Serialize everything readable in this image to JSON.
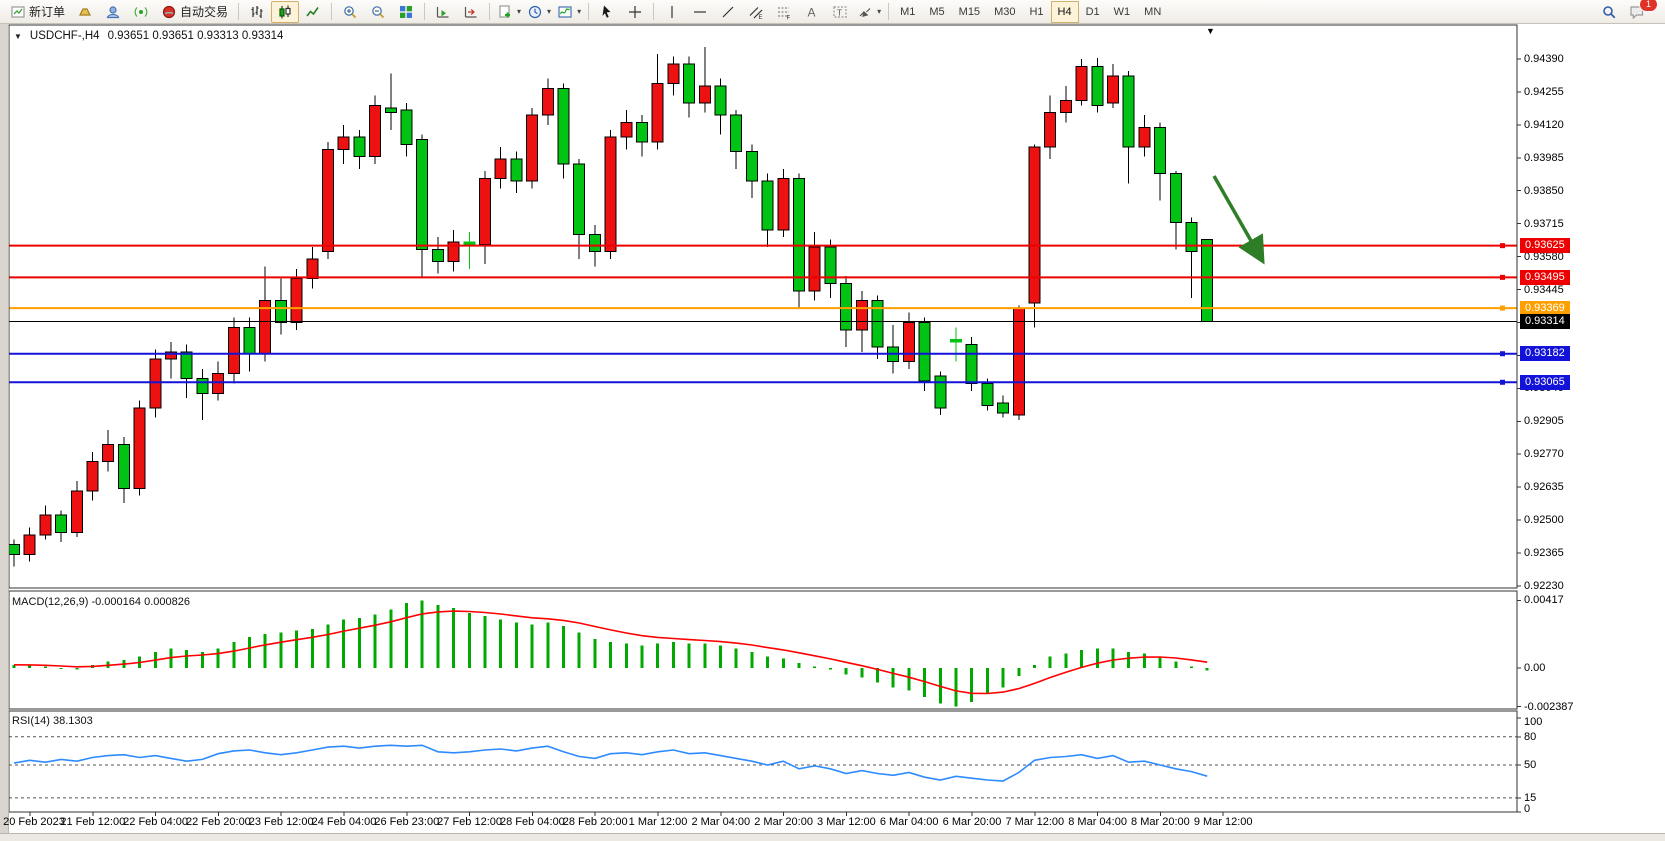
{
  "toolbar": {
    "new_order_label": "新订单",
    "autotrade_label": "自动交易",
    "timeframes": [
      "M1",
      "M5",
      "M15",
      "M30",
      "H1",
      "H4",
      "D1",
      "W1",
      "MN"
    ],
    "active_timeframe": "H4",
    "notification_count": "1",
    "items": [
      {
        "icon": "new-order-icon",
        "label": "新订单"
      },
      {
        "icon": "gold-icon"
      },
      {
        "icon": "profile-icon"
      },
      {
        "icon": "signal-icon"
      },
      {
        "icon": "autotrading-icon",
        "label": "自动交易"
      },
      {
        "sep": true
      },
      {
        "icon": "bar-chart-icon"
      },
      {
        "icon": "candlestick-icon",
        "active": true
      },
      {
        "icon": "line-chart-icon"
      },
      {
        "sep": true
      },
      {
        "icon": "zoom-in-icon"
      },
      {
        "icon": "zoom-out-icon"
      },
      {
        "icon": "tile-windows-icon"
      },
      {
        "sep": true
      },
      {
        "icon": "auto-scroll-icon"
      },
      {
        "icon": "chart-shift-icon"
      },
      {
        "sep": true
      },
      {
        "icon": "new-template-icon",
        "dropdown": true
      },
      {
        "icon": "period-icon",
        "dropdown": true
      },
      {
        "icon": "indicators-icon",
        "dropdown": true
      },
      {
        "sep": true
      },
      {
        "icon": "cursor-icon"
      },
      {
        "icon": "crosshair-icon"
      },
      {
        "sep": true
      },
      {
        "icon": "vertical-line-icon"
      },
      {
        "icon": "horizontal-line-icon"
      },
      {
        "icon": "trendline-icon"
      },
      {
        "icon": "channel-icon"
      },
      {
        "icon": "fibonacci-icon"
      },
      {
        "icon": "text-icon"
      },
      {
        "icon": "text-label-icon"
      },
      {
        "icon": "shapes-icon",
        "dropdown": true
      },
      {
        "sep": true
      },
      {
        "timeframes": true
      }
    ]
  },
  "header": {
    "symbol_title": "USDCHF-,H4",
    "ohlc": "0.93651 0.93651 0.93313 0.93314"
  },
  "macd_panel": {
    "label": "MACD(12,26,9) -0.000164 0.000826",
    "axis_labels": [
      "0.00417",
      "0.00",
      "-0.002387"
    ],
    "axis_values": [
      0.00417,
      0.0,
      -0.002387
    ]
  },
  "rsi_panel": {
    "label": "RSI(14) 38.1303",
    "axis_labels": [
      "100",
      "80",
      "50",
      "15",
      "0"
    ],
    "axis_values": [
      100,
      80,
      50,
      15,
      0
    ],
    "dashed_levels": [
      80,
      50,
      15
    ]
  },
  "chart_data": {
    "type": "candlestick",
    "symbol": "USDCHF-",
    "timeframe": "H4",
    "bull_color": "#ee1111",
    "bear_color": "#00c314",
    "wick_color": "#000000",
    "grid": false,
    "price_axis_ticks": [
      "0.94390",
      "0.94255",
      "0.94120",
      "0.93985",
      "0.93850",
      "0.93715",
      "0.93580",
      "0.93445",
      "0.93310",
      "0.93175",
      "0.93040",
      "0.92905",
      "0.92770",
      "0.92635",
      "0.92500",
      "0.92365",
      "0.92230"
    ],
    "price_range": [
      0.9223,
      0.9439
    ],
    "time_labels": [
      "20 Feb 2023",
      "21 Feb 12:00",
      "22 Feb 04:00",
      "22 Feb 20:00",
      "23 Feb 12:00",
      "24 Feb 04:00",
      "26 Feb 23:00",
      "27 Feb 12:00",
      "28 Feb 04:00",
      "28 Feb 20:00",
      "1 Mar 12:00",
      "2 Mar 04:00",
      "2 Mar 20:00",
      "3 Mar 12:00",
      "6 Mar 04:00",
      "6 Mar 20:00",
      "7 Mar 12:00",
      "8 Mar 04:00",
      "8 Mar 20:00",
      "9 Mar 12:00"
    ],
    "price_lines": [
      {
        "label": "0.93625",
        "price": 0.93625,
        "color": "#ec0000",
        "width": 2,
        "kind": "horizontal-line"
      },
      {
        "label": "0.93495",
        "price": 0.93495,
        "color": "#ec0000",
        "width": 2,
        "kind": "horizontal-line"
      },
      {
        "label": "0.93369",
        "price": 0.93369,
        "color": "#ffa000",
        "width": 2,
        "kind": "horizontal-line"
      },
      {
        "label": "0.93314",
        "price": 0.93314,
        "color": "#000000",
        "width": 1,
        "kind": "current-price-line"
      },
      {
        "label": "0.93182",
        "price": 0.93182,
        "color": "#1212d8",
        "width": 2,
        "kind": "horizontal-line"
      },
      {
        "label": "0.93065",
        "price": 0.93065,
        "color": "#1212d8",
        "width": 2,
        "kind": "horizontal-line"
      }
    ],
    "candles_ohlc": [
      [
        0.924,
        0.9242,
        0.9231,
        0.9236
      ],
      [
        0.9236,
        0.9247,
        0.9233,
        0.9244
      ],
      [
        0.9244,
        0.9256,
        0.9242,
        0.9252
      ],
      [
        0.9252,
        0.9254,
        0.9241,
        0.9245
      ],
      [
        0.9245,
        0.9266,
        0.9243,
        0.9262
      ],
      [
        0.9262,
        0.9278,
        0.9258,
        0.9274
      ],
      [
        0.9274,
        0.9287,
        0.927,
        0.9281
      ],
      [
        0.9281,
        0.9284,
        0.9257,
        0.9263
      ],
      [
        0.9263,
        0.9299,
        0.926,
        0.9296
      ],
      [
        0.9296,
        0.932,
        0.9292,
        0.9316
      ],
      [
        0.9316,
        0.9323,
        0.9308,
        0.9319
      ],
      [
        0.9319,
        0.9322,
        0.93,
        0.9308
      ],
      [
        0.9308,
        0.9312,
        0.9291,
        0.9302
      ],
      [
        0.9302,
        0.9315,
        0.9299,
        0.931
      ],
      [
        0.931,
        0.9333,
        0.9306,
        0.9329
      ],
      [
        0.9329,
        0.9333,
        0.9311,
        0.9318
      ],
      [
        0.9318,
        0.9354,
        0.9315,
        0.934
      ],
      [
        0.934,
        0.9349,
        0.9326,
        0.9331
      ],
      [
        0.9331,
        0.9353,
        0.9328,
        0.9349
      ],
      [
        0.9349,
        0.9362,
        0.9345,
        0.9357
      ],
      [
        0.936,
        0.9405,
        0.9357,
        0.9402
      ],
      [
        0.9402,
        0.9412,
        0.9396,
        0.9407
      ],
      [
        0.9407,
        0.941,
        0.9394,
        0.9399
      ],
      [
        0.9399,
        0.9424,
        0.9396,
        0.942
      ],
      [
        0.9419,
        0.9433,
        0.941,
        0.9417
      ],
      [
        0.9418,
        0.9421,
        0.9399,
        0.9404
      ],
      [
        0.9406,
        0.9408,
        0.9349,
        0.9361
      ],
      [
        0.9361,
        0.9366,
        0.9351,
        0.9356
      ],
      [
        0.9356,
        0.9369,
        0.9352,
        0.9364
      ],
      [
        0.9364,
        0.9368,
        0.9353,
        0.9363
      ],
      [
        0.9363,
        0.9393,
        0.9355,
        0.939
      ],
      [
        0.939,
        0.9403,
        0.9386,
        0.9398
      ],
      [
        0.9398,
        0.9401,
        0.9384,
        0.9389
      ],
      [
        0.9389,
        0.9419,
        0.9386,
        0.9416
      ],
      [
        0.9416,
        0.9431,
        0.9412,
        0.9427
      ],
      [
        0.9427,
        0.9429,
        0.939,
        0.9396
      ],
      [
        0.9396,
        0.9398,
        0.9357,
        0.9367
      ],
      [
        0.9367,
        0.9371,
        0.9354,
        0.936
      ],
      [
        0.936,
        0.941,
        0.9357,
        0.9407
      ],
      [
        0.9407,
        0.9418,
        0.9402,
        0.9413
      ],
      [
        0.9413,
        0.9416,
        0.9399,
        0.9405
      ],
      [
        0.9405,
        0.9441,
        0.9402,
        0.9429
      ],
      [
        0.9429,
        0.944,
        0.9424,
        0.9437
      ],
      [
        0.9437,
        0.944,
        0.9415,
        0.9421
      ],
      [
        0.9421,
        0.9444,
        0.9417,
        0.9428
      ],
      [
        0.9428,
        0.9431,
        0.9408,
        0.9416
      ],
      [
        0.9416,
        0.9418,
        0.9394,
        0.9401
      ],
      [
        0.9401,
        0.9404,
        0.9382,
        0.9389
      ],
      [
        0.9389,
        0.9392,
        0.9362,
        0.9369
      ],
      [
        0.9369,
        0.9394,
        0.9366,
        0.939
      ],
      [
        0.939,
        0.9392,
        0.9337,
        0.9344
      ],
      [
        0.9344,
        0.9368,
        0.934,
        0.9362
      ],
      [
        0.9362,
        0.9365,
        0.9341,
        0.9347
      ],
      [
        0.9347,
        0.935,
        0.9321,
        0.9328
      ],
      [
        0.9328,
        0.9344,
        0.9319,
        0.934
      ],
      [
        0.934,
        0.9342,
        0.9316,
        0.9321
      ],
      [
        0.9321,
        0.933,
        0.931,
        0.9315
      ],
      [
        0.9315,
        0.9335,
        0.9312,
        0.9331
      ],
      [
        0.9331,
        0.9333,
        0.9303,
        0.9307
      ],
      [
        0.9309,
        0.9311,
        0.9293,
        0.9296
      ],
      [
        0.9324,
        0.9329,
        0.9315,
        0.9323
      ],
      [
        0.9322,
        0.9325,
        0.9303,
        0.9306
      ],
      [
        0.9306,
        0.9308,
        0.9295,
        0.9297
      ],
      [
        0.9298,
        0.9301,
        0.9292,
        0.9294
      ],
      [
        0.9293,
        0.9338,
        0.9291,
        0.9337
      ],
      [
        0.9339,
        0.9404,
        0.9329,
        0.9403
      ],
      [
        0.9403,
        0.9424,
        0.9398,
        0.9417
      ],
      [
        0.9417,
        0.9428,
        0.9413,
        0.9422
      ],
      [
        0.9422,
        0.9439,
        0.942,
        0.9436
      ],
      [
        0.9436,
        0.94394,
        0.9417,
        0.942
      ],
      [
        0.9421,
        0.9437,
        0.9419,
        0.9432
      ],
      [
        0.9432,
        0.9434,
        0.9388,
        0.9403
      ],
      [
        0.9403,
        0.9416,
        0.9399,
        0.9411
      ],
      [
        0.9411,
        0.9413,
        0.9381,
        0.9392
      ],
      [
        0.9392,
        0.9393,
        0.9361,
        0.9372
      ],
      [
        0.9372,
        0.9374,
        0.9341,
        0.936
      ],
      [
        0.93651,
        0.93651,
        0.93313,
        0.93314
      ]
    ],
    "macd_histogram": [
      0.0002,
      0.00015,
      0.0001,
      -5e-05,
      -0.0001,
      0.0002,
      0.0004,
      0.0005,
      0.0007,
      0.001,
      0.0012,
      0.0011,
      0.001,
      0.0012,
      0.0016,
      0.0019,
      0.0021,
      0.0022,
      0.0023,
      0.0024,
      0.0027,
      0.003,
      0.0031,
      0.0033,
      0.0036,
      0.004,
      0.00417,
      0.0039,
      0.0037,
      0.0034,
      0.0032,
      0.003,
      0.0028,
      0.0027,
      0.0028,
      0.0026,
      0.0022,
      0.0018,
      0.0016,
      0.0015,
      0.0014,
      0.0015,
      0.0016,
      0.0015,
      0.0015,
      0.0014,
      0.0012,
      0.001,
      0.0007,
      0.0006,
      0.0003,
      0.0001,
      -0.0001,
      -0.0004,
      -0.0006,
      -0.0009,
      -0.0012,
      -0.0014,
      -0.0018,
      -0.0022,
      -0.00239,
      -0.0021,
      -0.0016,
      -0.0012,
      -0.0005,
      0.0002,
      0.0007,
      0.0009,
      0.0011,
      0.0012,
      0.0012,
      0.001,
      0.0009,
      0.0007,
      0.0004,
      0.0001,
      -0.000164
    ],
    "macd_last_values": {
      "main": -0.000164,
      "signal": 0.000826
    },
    "macd_histogram_color": "#00a800",
    "macd_signal_color": "#ff0000",
    "rsi_values": [
      52,
      55,
      53,
      56,
      54,
      58,
      60,
      61,
      58,
      60,
      57,
      54,
      56,
      62,
      65,
      66,
      63,
      61,
      63,
      66,
      69,
      70,
      68,
      70,
      71,
      70,
      71,
      64,
      63,
      64,
      66,
      67,
      65,
      68,
      70,
      64,
      59,
      57,
      62,
      63,
      61,
      64,
      66,
      62,
      63,
      60,
      57,
      54,
      50,
      54,
      46,
      49,
      46,
      41,
      44,
      41,
      39,
      42,
      37,
      34,
      38,
      36,
      34,
      33,
      42,
      55,
      58,
      59,
      61,
      57,
      60,
      53,
      54,
      50,
      46,
      43,
      38.13
    ],
    "rsi_color": "#2e8bff",
    "annotation": {
      "type": "trend-arrow",
      "color": "#2e7d27",
      "direction": "down-right"
    }
  }
}
